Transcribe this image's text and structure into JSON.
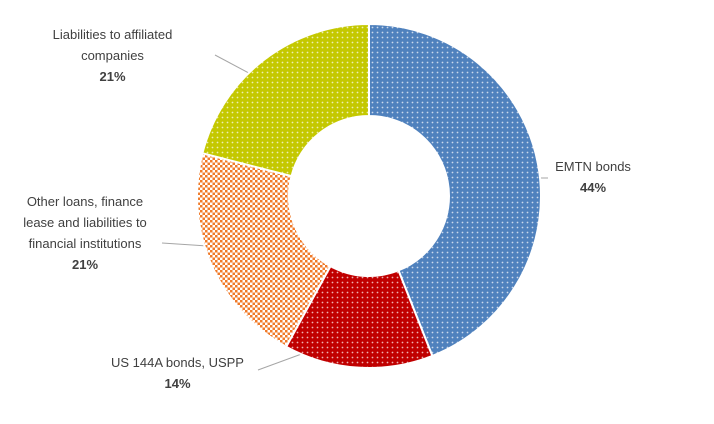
{
  "chart_data": {
    "type": "donut",
    "categories": [
      "EMTN bonds",
      "US 144A bonds, USPP",
      "Other loans, finance lease and liabilities to financial institutions",
      "Liabilities to affiliated companies"
    ],
    "values": [
      44,
      14,
      21,
      21
    ],
    "value_labels": [
      "44%",
      "14%",
      "21%",
      "21%"
    ],
    "colors": [
      "#4f81bd",
      "#c00000",
      "#f07a28",
      "#c4c800"
    ]
  }
}
